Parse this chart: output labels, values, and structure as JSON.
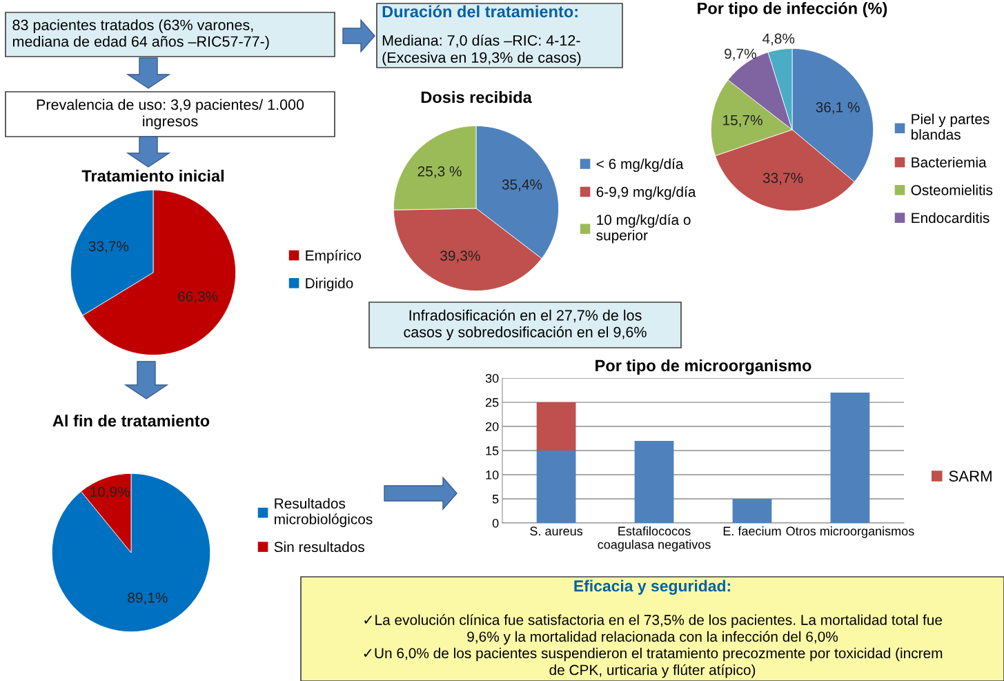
{
  "chart_data": [
    {
      "type": "other",
      "annotations": [
        "83 pacientes tratados (63% varones,\nmediana de edad 64 años –RIC57-77-)"
      ]
    },
    {
      "type": "other",
      "title": "Duración del tratamiento:",
      "annotations": [
        "Mediana: 7,0 días –RIC: 4-12-\n(Excesiva en 19,3% de casos)"
      ]
    },
    {
      "type": "other",
      "annotations": [
        "Prevalencia de uso: 3,9 pacientes/ 1.000\ningresos"
      ]
    },
    {
      "type": "pie",
      "title": "Tratamiento inicial",
      "categories": [
        "Empírico",
        "Dirigido"
      ],
      "values": [
        66.3,
        33.7
      ],
      "colors": [
        "#c00000",
        "#0070c0"
      ],
      "value_labels": [
        "66,3%",
        "33,7%"
      ],
      "legend": "right"
    },
    {
      "type": "pie",
      "title": "Dosis recibida",
      "categories": [
        "< 6 mg/kg/día",
        "6-9,9 mg/kg/día",
        "10 mg/kg/día o\nsuperior"
      ],
      "values": [
        35.4,
        39.3,
        25.3
      ],
      "colors": [
        "#4f81bd",
        "#c0504d",
        "#9bbb59"
      ],
      "value_labels": [
        "35,4%",
        "39,3%",
        "25,3 %"
      ],
      "legend": "right"
    },
    {
      "type": "pie",
      "title": "Por tipo de infección (%)",
      "categories": [
        "Piel y partes\nblandas",
        "Bacteriemia",
        "Osteomielitis",
        "Endocarditis",
        null
      ],
      "values": [
        36.1,
        33.7,
        15.7,
        9.7,
        4.8
      ],
      "colors": [
        "#4f81bd",
        "#c0504d",
        "#9bbb59",
        "#8064a2",
        "#4bacc6"
      ],
      "value_labels": [
        "36,1 %",
        "33,7%",
        "15,7%",
        "9,7%",
        "4,8%"
      ],
      "legend": "right"
    },
    {
      "type": "other",
      "annotations": [
        "Infradosificación en el 27,7% de los\ncasos y sobredosificación en el 9,6%"
      ]
    },
    {
      "type": "pie",
      "title": "Al fin de tratamiento",
      "categories": [
        "Resultados\nmicrobiológicos",
        "Sin resultados"
      ],
      "values": [
        89.1,
        10.9
      ],
      "colors": [
        "#0070c0",
        "#c00000"
      ],
      "value_labels": [
        "89,1%",
        "10,9%"
      ],
      "legend": "right"
    },
    {
      "type": "bar",
      "title": "Por tipo de microorganismo",
      "categories": [
        "S. aureus",
        "Estafilococos\ncoagulasa negativos",
        "E. faecium",
        "Otros microorganismos"
      ],
      "stacked": true,
      "ylim": [
        0,
        30
      ],
      "yticks": [
        0,
        5,
        10,
        15,
        20,
        25,
        30
      ],
      "grid": "y",
      "legend": "right",
      "series": [
        {
          "color": "#4f81bd",
          "values": [
            15,
            17,
            5,
            27
          ]
        },
        {
          "name": "SARM",
          "color": "#c0504d",
          "values": [
            10,
            null,
            null,
            null
          ]
        }
      ]
    },
    {
      "type": "other",
      "title": "Eficacia y seguridad:",
      "annotations": [
        "✓La evolución clínica fue satisfactoria en el 73,5% de los pacientes. La mortalidad total fue\n9,6% y la mortalidad relacionada con la infección del 6,0%\n✓Un 6,0% de los pacientes suspendieron el tratamiento precozmente por toxicidad (increm\nde CPK, urticaria y flúter atípico)"
      ]
    }
  ]
}
